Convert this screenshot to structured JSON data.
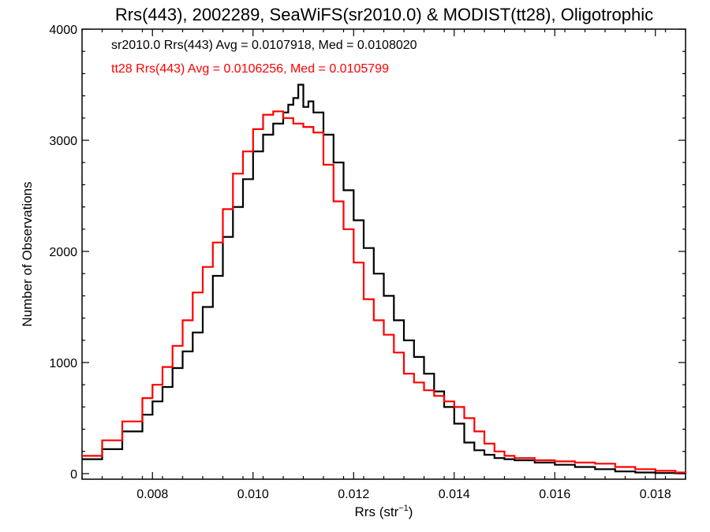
{
  "chart_data": {
    "type": "line",
    "title": "Rrs(443), 2002289, SeaWiFS(sr2010.0) & MODIST(tt28), Oligotrophic",
    "xlabel_base": "Rrs (str",
    "xlabel_sup": "−1",
    "xlabel_end": ")",
    "ylabel": "Number of Observations",
    "xlim": [
      0.0066,
      0.0186
    ],
    "ylim": [
      -50,
      4000
    ],
    "xticks": [
      0.008,
      0.01,
      0.012,
      0.014,
      0.016,
      0.018
    ],
    "xtick_labels": [
      "0.008",
      "0.010",
      "0.012",
      "0.014",
      "0.016",
      "0.018"
    ],
    "yticks": [
      0,
      1000,
      2000,
      3000,
      4000
    ],
    "ytick_labels": [
      "0",
      "1000",
      "2000",
      "3000",
      "4000"
    ],
    "annotations": [
      {
        "text": "sr2010.0 Rrs(443) Avg = 0.0107918, Med = 0.0108020",
        "color": "#000000"
      },
      {
        "text": "tt28 Rrs(443) Avg = 0.0106256, Med = 0.0105799",
        "color": "#ff0000"
      }
    ],
    "series": [
      {
        "color": "#000000",
        "x": [
          0.0066,
          0.007,
          0.0074,
          0.0078,
          0.008,
          0.0082,
          0.0084,
          0.0086,
          0.0088,
          0.009,
          0.0092,
          0.0094,
          0.0096,
          0.0098,
          0.01,
          0.0102,
          0.0104,
          0.0106,
          0.0107,
          0.0108,
          0.0109,
          0.011,
          0.0111,
          0.0112,
          0.0114,
          0.0116,
          0.0118,
          0.012,
          0.0122,
          0.0124,
          0.0126,
          0.0128,
          0.013,
          0.0132,
          0.0134,
          0.0136,
          0.0138,
          0.014,
          0.0142,
          0.0144,
          0.0146,
          0.0148,
          0.015,
          0.0152,
          0.0156,
          0.016,
          0.0164,
          0.0168,
          0.0172,
          0.0176,
          0.018,
          0.0184,
          0.0186
        ],
        "y": [
          130,
          220,
          380,
          530,
          650,
          780,
          950,
          1100,
          1270,
          1500,
          1780,
          2130,
          2400,
          2650,
          2900,
          3050,
          3150,
          3250,
          3320,
          3380,
          3500,
          3300,
          3350,
          3250,
          3050,
          2800,
          2550,
          2280,
          2030,
          1800,
          1600,
          1380,
          1200,
          1050,
          900,
          740,
          600,
          450,
          280,
          210,
          170,
          140,
          130,
          120,
          100,
          80,
          60,
          40,
          20,
          10,
          5,
          3,
          2
        ]
      },
      {
        "color": "#ff0000",
        "x": [
          0.0066,
          0.007,
          0.0074,
          0.0078,
          0.008,
          0.0082,
          0.0084,
          0.0086,
          0.0088,
          0.009,
          0.0092,
          0.0094,
          0.0096,
          0.0098,
          0.01,
          0.0102,
          0.0104,
          0.0106,
          0.0108,
          0.011,
          0.0112,
          0.0114,
          0.0116,
          0.0118,
          0.012,
          0.0122,
          0.0124,
          0.0126,
          0.0128,
          0.013,
          0.0132,
          0.0134,
          0.0136,
          0.0138,
          0.014,
          0.0142,
          0.0144,
          0.0146,
          0.0148,
          0.015,
          0.0152,
          0.0156,
          0.016,
          0.0164,
          0.0168,
          0.0172,
          0.0176,
          0.018,
          0.0184,
          0.0186
        ],
        "y": [
          160,
          300,
          470,
          680,
          800,
          960,
          1150,
          1380,
          1630,
          1860,
          2080,
          2380,
          2700,
          2900,
          3100,
          3230,
          3260,
          3200,
          3150,
          3120,
          3070,
          2780,
          2450,
          2200,
          1900,
          1570,
          1380,
          1250,
          1090,
          900,
          820,
          750,
          700,
          650,
          600,
          500,
          380,
          270,
          200,
          160,
          140,
          120,
          110,
          100,
          90,
          60,
          40,
          25,
          10,
          5
        ]
      }
    ]
  }
}
